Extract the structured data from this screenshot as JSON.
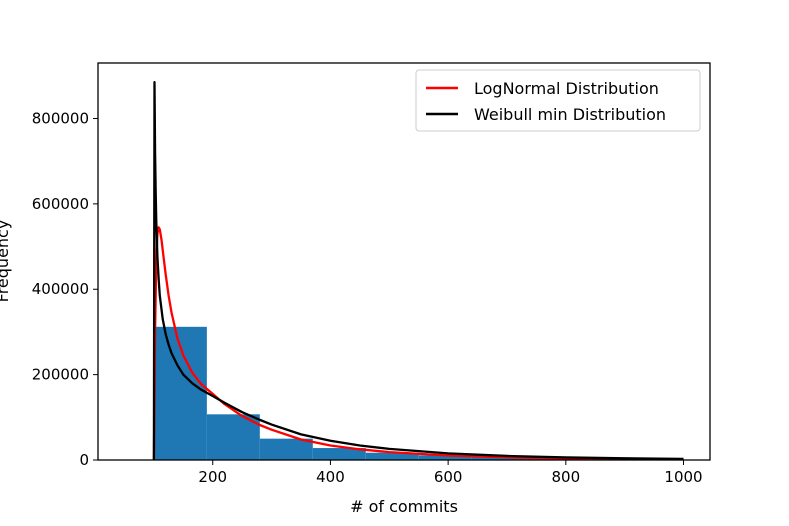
{
  "chart_data": {
    "type": "histogram",
    "title": "",
    "xlabel": "# of commits",
    "ylabel": "Frequency",
    "xlim": [
      5,
      1045
    ],
    "ylim": [
      0,
      930000
    ],
    "x_ticks": [
      200,
      400,
      600,
      800,
      1000
    ],
    "y_ticks": [
      0,
      200000,
      400000,
      600000,
      800000
    ],
    "bars": [
      {
        "x0": 100,
        "x1": 190,
        "value": 312000
      },
      {
        "x0": 190,
        "x1": 280,
        "value": 107000
      },
      {
        "x0": 280,
        "x1": 370,
        "value": 50000
      },
      {
        "x0": 370,
        "x1": 460,
        "value": 28000
      },
      {
        "x0": 460,
        "x1": 550,
        "value": 17000
      },
      {
        "x0": 550,
        "x1": 640,
        "value": 11000
      },
      {
        "x0": 640,
        "x1": 730,
        "value": 7000
      },
      {
        "x0": 730,
        "x1": 820,
        "value": 5000
      },
      {
        "x0": 820,
        "x1": 910,
        "value": 3500
      },
      {
        "x0": 910,
        "x1": 1000,
        "value": 2500
      }
    ],
    "bar_color": "#1f77b4",
    "series": [
      {
        "name": "LogNormal Distribution",
        "color": "#ff0000",
        "x": [
          100,
          102,
          104,
          106,
          108,
          110,
          113,
          116,
          120,
          125,
          130,
          140,
          150,
          165,
          180,
          200,
          220,
          250,
          280,
          300,
          350,
          400,
          450,
          500,
          600,
          700,
          800,
          900,
          1000
        ],
        "y": [
          0,
          300000,
          470000,
          530000,
          545000,
          540000,
          515000,
          480000,
          435000,
          385000,
          345000,
          285000,
          245000,
          205000,
          178000,
          155000,
          131000,
          103000,
          82000,
          71000,
          48000,
          34000,
          25000,
          18500,
          10500,
          6300,
          3900,
          2400,
          1500
        ]
      },
      {
        "name": "Weibull min Distribution",
        "color": "#000000",
        "x": [
          100,
          101,
          102,
          103,
          104,
          106,
          108,
          110,
          115,
          120,
          125,
          130,
          140,
          150,
          165,
          180,
          200,
          220,
          250,
          280,
          300,
          350,
          400,
          450,
          500,
          600,
          700,
          800,
          900,
          1000
        ],
        "y": [
          0,
          885000,
          720000,
          630000,
          560000,
          475000,
          425000,
          385000,
          330000,
          295000,
          270000,
          250000,
          222000,
          200000,
          180000,
          165000,
          150000,
          134000,
          112000,
          94000,
          83000,
          60000,
          45000,
          34000,
          26000,
          15500,
          9500,
          6000,
          4000,
          2700
        ]
      }
    ],
    "legend": {
      "position": "top-right",
      "entries": [
        "LogNormal Distribution",
        "Weibull min Distribution"
      ]
    },
    "grid": false
  }
}
